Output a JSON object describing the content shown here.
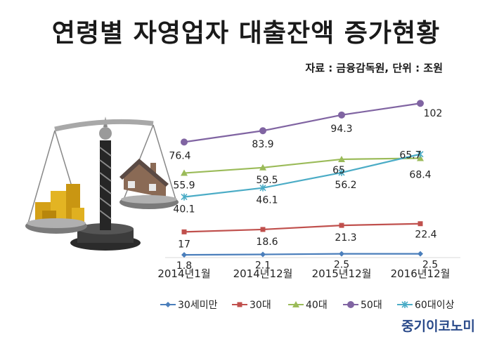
{
  "title": "연령별 자영업자 대출잔액 증가현황",
  "source": "자료 : 금융감독원, 단위 : 조원",
  "brand": "중기이코노미",
  "chart_data": {
    "type": "line",
    "categories": [
      "2014년1월",
      "2014년12월",
      "2015년12월",
      "2016년12월"
    ],
    "series": [
      {
        "name": "30세미만",
        "values": [
          1.8,
          2.1,
          2.5,
          2.5
        ],
        "color": "#4a7ebb",
        "marker": "diamond"
      },
      {
        "name": "30대",
        "values": [
          17,
          18.6,
          21.3,
          22.4
        ],
        "color": "#c0504d",
        "marker": "square"
      },
      {
        "name": "40대",
        "values": [
          55.9,
          59.5,
          65,
          65.7
        ],
        "color": "#9bbb59",
        "marker": "triangle"
      },
      {
        "name": "50대",
        "values": [
          76.4,
          83.9,
          94.3,
          102
        ],
        "color": "#8064a2",
        "marker": "circle"
      },
      {
        "name": "60대이상",
        "values": [
          40.1,
          46.1,
          56.2,
          68.4
        ],
        "color": "#4bacc6",
        "marker": "star"
      }
    ],
    "ylim": [
      0,
      110
    ],
    "legend_position": "bottom",
    "grid": false
  }
}
